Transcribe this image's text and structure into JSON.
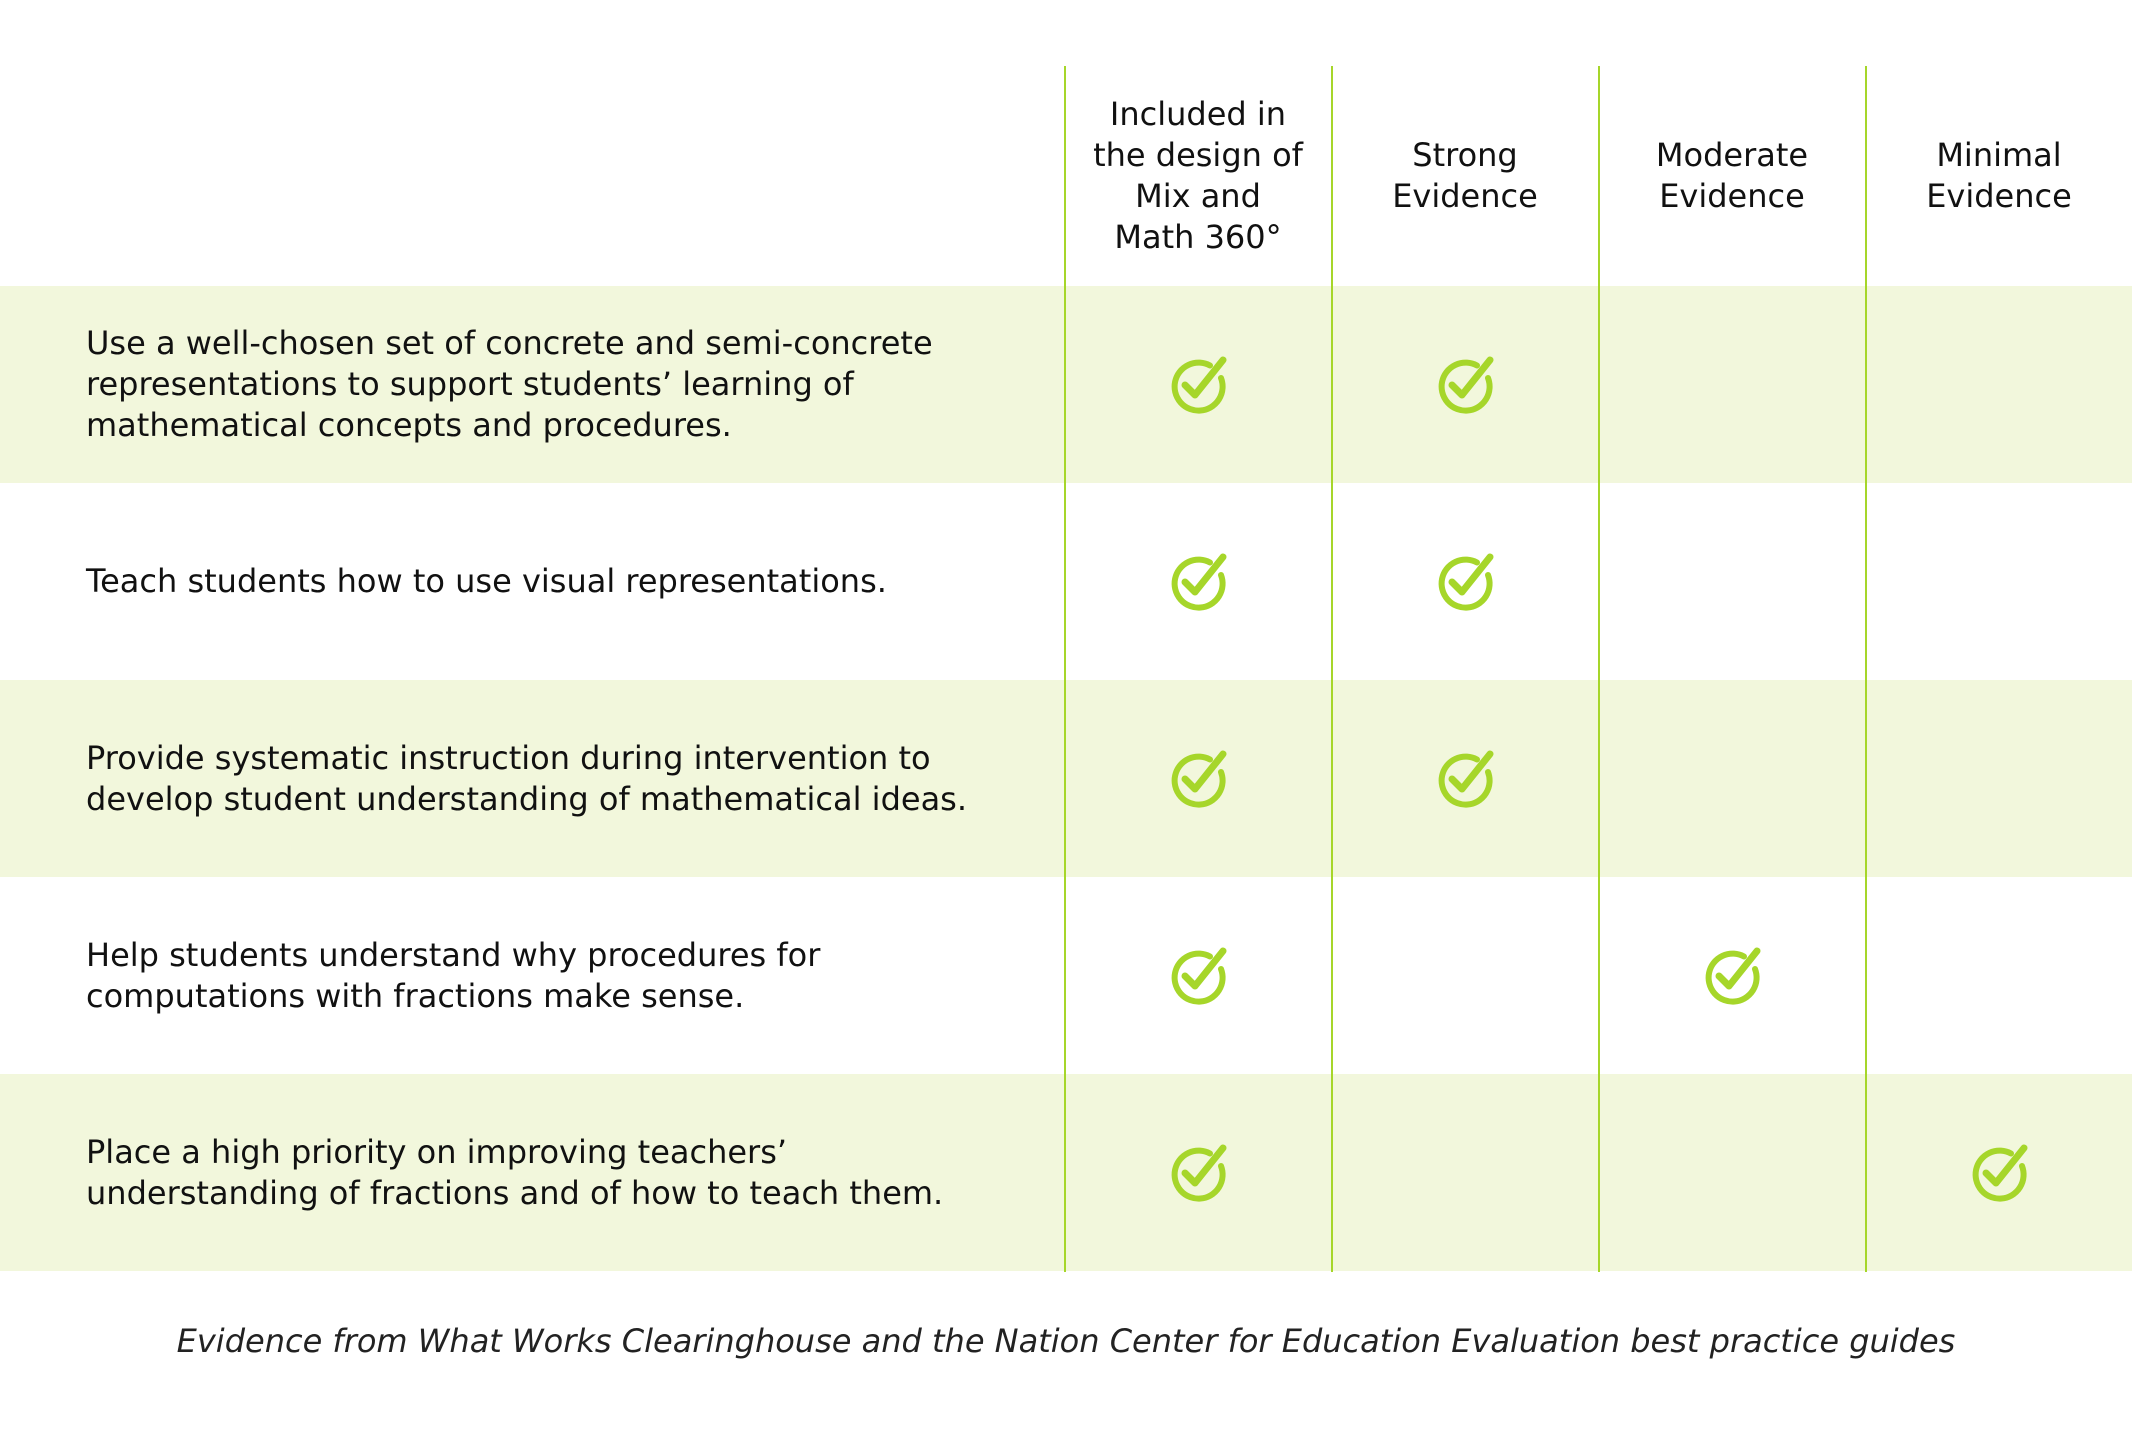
{
  "colors": {
    "accent": "#a6d62a",
    "row_shade": "#f2f7dc",
    "check": "#a6d62a"
  },
  "columns": [
    {
      "label": "Included in\nthe design of\nMix and\nMath 360°"
    },
    {
      "label": "Strong\nEvidence"
    },
    {
      "label": "Moderate\nEvidence"
    },
    {
      "label": "Minimal\nEvidence"
    }
  ],
  "rows": [
    {
      "label": "Use a well-chosen set of concrete and semi-concrete representations to support students’ learning of mathematical concepts and procedures.",
      "checks": [
        true,
        true,
        false,
        false
      ]
    },
    {
      "label": "Teach students how to use visual representations.",
      "checks": [
        true,
        true,
        false,
        false
      ]
    },
    {
      "label": "Provide systematic instruction during intervention to develop student understanding of mathematical ideas.",
      "checks": [
        true,
        true,
        false,
        false
      ]
    },
    {
      "label": "Help students understand why procedures for computations with fractions make sense.",
      "checks": [
        true,
        false,
        true,
        false
      ]
    },
    {
      "label": "Place a high priority on improving teachers’ understanding of fractions and of how to teach them.",
      "checks": [
        true,
        false,
        false,
        true
      ]
    }
  ],
  "check_icon": "check-circle-icon",
  "footnote": "Evidence from What Works Clearinghouse and the Nation Center for Education Evaluation best practice guides"
}
